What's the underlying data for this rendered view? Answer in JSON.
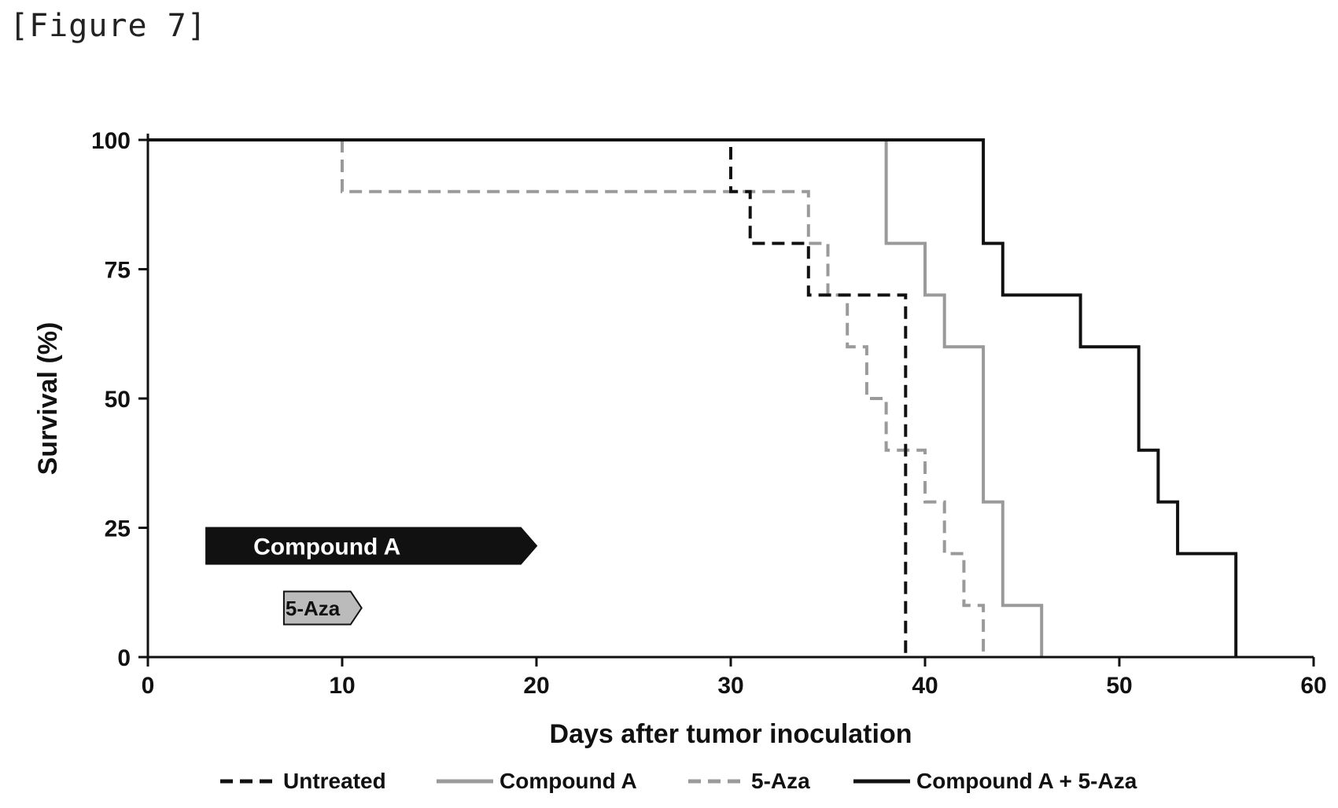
{
  "figure_label": "[Figure 7]",
  "chart_data": {
    "type": "line",
    "step": true,
    "title": "",
    "xlabel": "Days after tumor inoculation",
    "ylabel": "Survival (%)",
    "xlim": [
      0,
      60
    ],
    "ylim": [
      0,
      100
    ],
    "xticks": [
      0,
      10,
      20,
      30,
      40,
      50,
      60
    ],
    "yticks": [
      0,
      25,
      50,
      75,
      100
    ],
    "grid": false,
    "legend_position": "bottom",
    "series": [
      {
        "name": "Untreated",
        "color": "#111111",
        "style": "dashed",
        "points": [
          [
            0,
            100
          ],
          [
            30,
            100
          ],
          [
            30,
            90
          ],
          [
            31,
            90
          ],
          [
            31,
            80
          ],
          [
            34,
            80
          ],
          [
            34,
            70
          ],
          [
            35,
            70
          ],
          [
            35,
            70
          ],
          [
            39,
            70
          ],
          [
            39,
            0
          ]
        ]
      },
      {
        "name": "Compound A",
        "color": "#9a9a9a",
        "style": "solid",
        "points": [
          [
            38,
            100
          ],
          [
            38,
            80
          ],
          [
            40,
            80
          ],
          [
            40,
            70
          ],
          [
            41,
            70
          ],
          [
            41,
            60
          ],
          [
            43,
            60
          ],
          [
            43,
            30
          ],
          [
            44,
            30
          ],
          [
            44,
            10
          ],
          [
            46,
            10
          ],
          [
            46,
            0
          ]
        ]
      },
      {
        "name": "5-Aza",
        "color": "#9a9a9a",
        "style": "dashed",
        "points": [
          [
            10,
            100
          ],
          [
            10,
            90
          ],
          [
            34,
            90
          ],
          [
            34,
            80
          ],
          [
            35,
            80
          ],
          [
            35,
            70
          ],
          [
            36,
            70
          ],
          [
            36,
            60
          ],
          [
            37,
            60
          ],
          [
            37,
            50
          ],
          [
            38,
            50
          ],
          [
            38,
            40
          ],
          [
            40,
            40
          ],
          [
            40,
            30
          ],
          [
            41,
            30
          ],
          [
            41,
            20
          ],
          [
            42,
            20
          ],
          [
            42,
            10
          ],
          [
            43,
            10
          ],
          [
            43,
            0
          ]
        ]
      },
      {
        "name": "Compound A + 5-Aza",
        "color": "#111111",
        "style": "solid",
        "points": [
          [
            0,
            100
          ],
          [
            43,
            100
          ],
          [
            43,
            80
          ],
          [
            44,
            80
          ],
          [
            44,
            70
          ],
          [
            48,
            70
          ],
          [
            48,
            60
          ],
          [
            51,
            60
          ],
          [
            51,
            40
          ],
          [
            52,
            40
          ],
          [
            52,
            30
          ],
          [
            53,
            30
          ],
          [
            53,
            20
          ],
          [
            56,
            20
          ],
          [
            56,
            0
          ]
        ]
      }
    ],
    "annotations": [
      {
        "label": "Compound A",
        "x_start": 3,
        "x_end": 20,
        "y": 21.5,
        "fill": "#111111",
        "text_color": "#ffffff"
      },
      {
        "label": "5-Aza",
        "x_start": 7,
        "x_end": 11,
        "y": 9.5,
        "fill": "#bbbbbb",
        "text_color": "#111111"
      }
    ]
  }
}
